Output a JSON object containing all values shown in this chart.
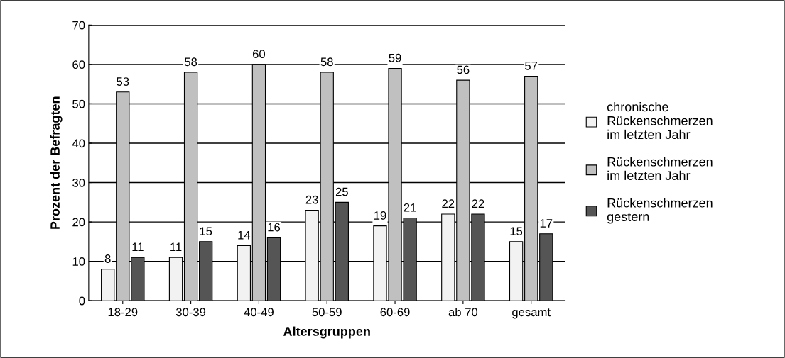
{
  "chart_data": {
    "type": "bar",
    "xlabel": "Altersgruppen",
    "ylabel": "Prozent der Befragten",
    "categories": [
      "18-29",
      "30-39",
      "40-49",
      "50-59",
      "60-69",
      "ab 70",
      "gesamt"
    ],
    "series": [
      {
        "name": "chronische\nRückenschmerzen\nim letzten Jahr",
        "color": "#f2f2f2",
        "values": [
          8,
          11,
          14,
          23,
          19,
          22,
          15
        ]
      },
      {
        "name": "Rückenschmerzen\nim letzten Jahr",
        "color": "#c0c0c0",
        "values": [
          53,
          58,
          60,
          58,
          59,
          56,
          57
        ]
      },
      {
        "name": "Rückenschmerzen\ngestern",
        "color": "#555555",
        "values": [
          11,
          15,
          16,
          25,
          21,
          22,
          17
        ]
      }
    ],
    "ylim": [
      0,
      70
    ],
    "yticks": [
      0,
      10,
      20,
      30,
      40,
      50,
      60,
      70
    ],
    "grid": "y",
    "legend": "right",
    "data_labels": true
  }
}
